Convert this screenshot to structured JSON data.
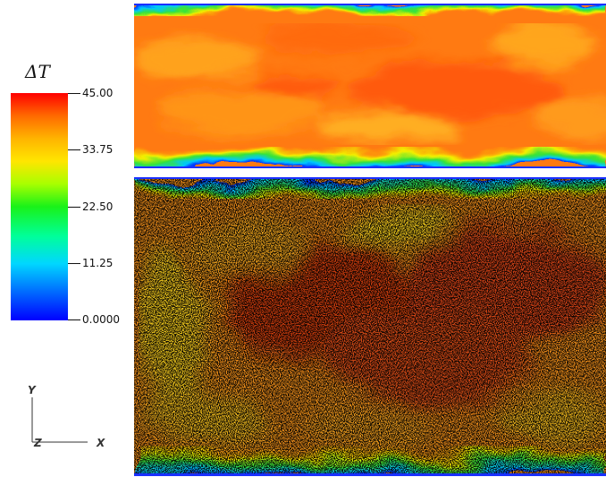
{
  "colorbar": {
    "title_symbol": "ΔT",
    "tick_labels": [
      "45.00",
      "33.75",
      "22.50",
      "11.25",
      "0.0000"
    ],
    "max": 45.0,
    "min": 0.0
  },
  "axes": {
    "y_label": "Y",
    "z_label": "Z",
    "x_label": "X"
  },
  "panels": [
    {
      "name": "temperature-field"
    },
    {
      "name": "temperature-field-with-particles"
    }
  ]
}
